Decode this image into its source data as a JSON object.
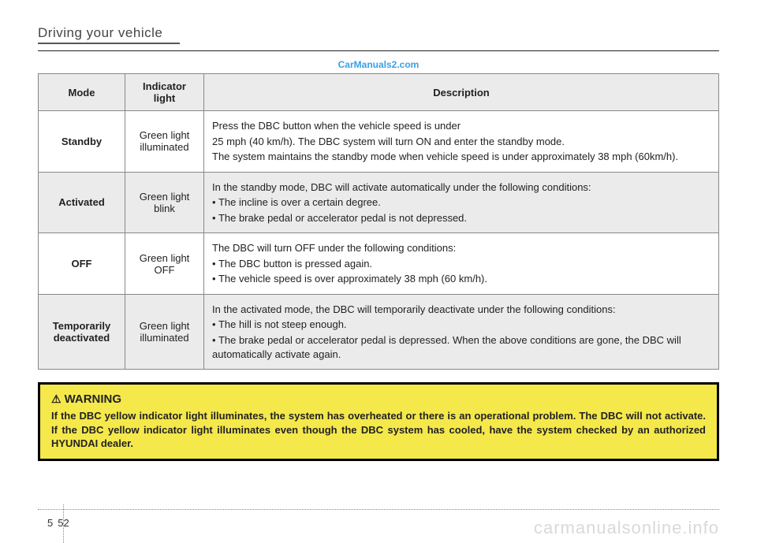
{
  "header": {
    "section_title": "Driving your vehicle"
  },
  "watermark_top": "CarManuals2.com",
  "table": {
    "headers": {
      "mode": "Mode",
      "indicator": "Indicator light",
      "description": "Description"
    },
    "rows": [
      {
        "mode": "Standby",
        "indicator": "Green light illuminated",
        "desc": [
          "Press the DBC button when the vehicle speed is under",
          "25 mph (40 km/h). The DBC system will turn ON and enter the standby mode.",
          "The system maintains the standby mode when vehicle speed is under approximately 38 mph (60km/h)."
        ],
        "bullets": [
          false,
          false,
          false
        ]
      },
      {
        "mode": "Activated",
        "indicator": "Green light blink",
        "desc": [
          "In the standby mode, DBC will activate automatically under the following conditions:",
          "The incline is over a certain degree.",
          "The brake pedal or accelerator pedal is not depressed."
        ],
        "bullets": [
          false,
          true,
          true
        ]
      },
      {
        "mode": "OFF",
        "indicator": "Green light OFF",
        "desc": [
          "The DBC will turn OFF under the following conditions:",
          "The DBC button is pressed again.",
          "The vehicle speed is over approximately 38 mph (60 km/h)."
        ],
        "bullets": [
          false,
          true,
          true
        ]
      },
      {
        "mode": "Temporarily deactivated",
        "indicator": "Green light illuminated",
        "desc": [
          "In the activated mode, the DBC will temporarily deactivate under the following conditions:",
          "The hill is not steep enough.",
          "The brake pedal or accelerator pedal is depressed. When the above conditions are gone, the DBC will automatically activate again."
        ],
        "bullets": [
          false,
          true,
          true
        ]
      }
    ]
  },
  "warning": {
    "title": "WARNING",
    "text": "If the DBC yellow indicator light illuminates, the system has overheated or there is an operational problem. The DBC will not activate. If the DBC yellow indicator light illuminates even though the DBC system has cooled, have the system checked by an authorized HYUNDAI dealer."
  },
  "footer": {
    "chapter": "5",
    "page": "52",
    "watermark": "carmanualsonline.info"
  }
}
